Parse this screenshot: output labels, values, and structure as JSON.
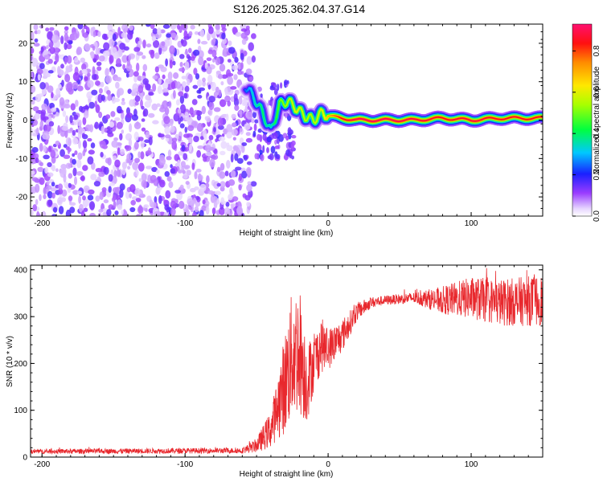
{
  "title": "S126.2025.362.04.37.G14",
  "chart_data": [
    {
      "type": "heatmap",
      "name": "spectrogram",
      "xlabel": "Height of straight line (km)",
      "ylabel": "Frequency (Hz)",
      "xlim": [
        -208,
        150
      ],
      "ylim": [
        -25,
        25
      ],
      "xticks": [
        -200,
        -100,
        0,
        100
      ],
      "xtick_labels": [
        "-200",
        "-100",
        "0",
        "100"
      ],
      "yticks": [
        -20,
        -10,
        0,
        10,
        20
      ],
      "ytick_labels": [
        "-20",
        "-10",
        "0",
        "10",
        "20"
      ],
      "noise_region_x": [
        -208,
        -52
      ],
      "trace": {
        "x": [
          -58,
          -52,
          -46,
          -40,
          -34,
          -28,
          -22,
          -16,
          -10,
          -4,
          0,
          10,
          20,
          40,
          60,
          80,
          100,
          120,
          150
        ],
        "y": [
          9,
          6,
          2,
          -3,
          4,
          5,
          3,
          1,
          0,
          2,
          1,
          0.5,
          0,
          0,
          0,
          0.5,
          0,
          0.5,
          0.5
        ],
        "amplitude": [
          0.25,
          0.35,
          0.4,
          0.35,
          0.5,
          0.55,
          0.6,
          0.55,
          0.55,
          0.6,
          0.7,
          0.85,
          0.9,
          0.9,
          0.88,
          0.85,
          0.88,
          0.85,
          0.85
        ]
      },
      "colorbar": {
        "label": "Normalized spectral amplitude",
        "range": [
          0,
          0.93
        ],
        "ticks": [
          0.0,
          0.2,
          0.4,
          0.6,
          0.8
        ],
        "tick_labels": [
          "0.0",
          "0.2",
          "0.4",
          "0.6",
          "0.8"
        ]
      }
    },
    {
      "type": "line",
      "name": "snr",
      "xlabel": "Height of straight line (km)",
      "ylabel": "SNR (10 * v/v)",
      "xlim": [
        -208,
        150
      ],
      "ylim": [
        0,
        410
      ],
      "xticks": [
        -200,
        -100,
        0,
        100
      ],
      "xtick_labels": [
        "-200",
        "-100",
        "0",
        "100"
      ],
      "yticks": [
        0,
        100,
        200,
        300,
        400
      ],
      "ytick_labels": [
        "0",
        "100",
        "200",
        "300",
        "400"
      ],
      "color": "#e8282d",
      "series": [
        {
          "name": "SNR",
          "x": [
            -208,
            -60,
            -50,
            -40,
            -35,
            -30,
            -25,
            -20,
            -15,
            -10,
            -5,
            0,
            10,
            20,
            30,
            40,
            60,
            80,
            100,
            120,
            150
          ],
          "y": [
            12,
            14,
            25,
            60,
            110,
            160,
            220,
            230,
            160,
            200,
            240,
            230,
            260,
            310,
            330,
            335,
            340,
            335,
            340,
            330,
            335
          ],
          "spread": [
            5,
            6,
            15,
            40,
            70,
            110,
            140,
            140,
            90,
            60,
            60,
            45,
            35,
            20,
            12,
            10,
            12,
            30,
            45,
            50,
            55
          ]
        }
      ]
    }
  ]
}
